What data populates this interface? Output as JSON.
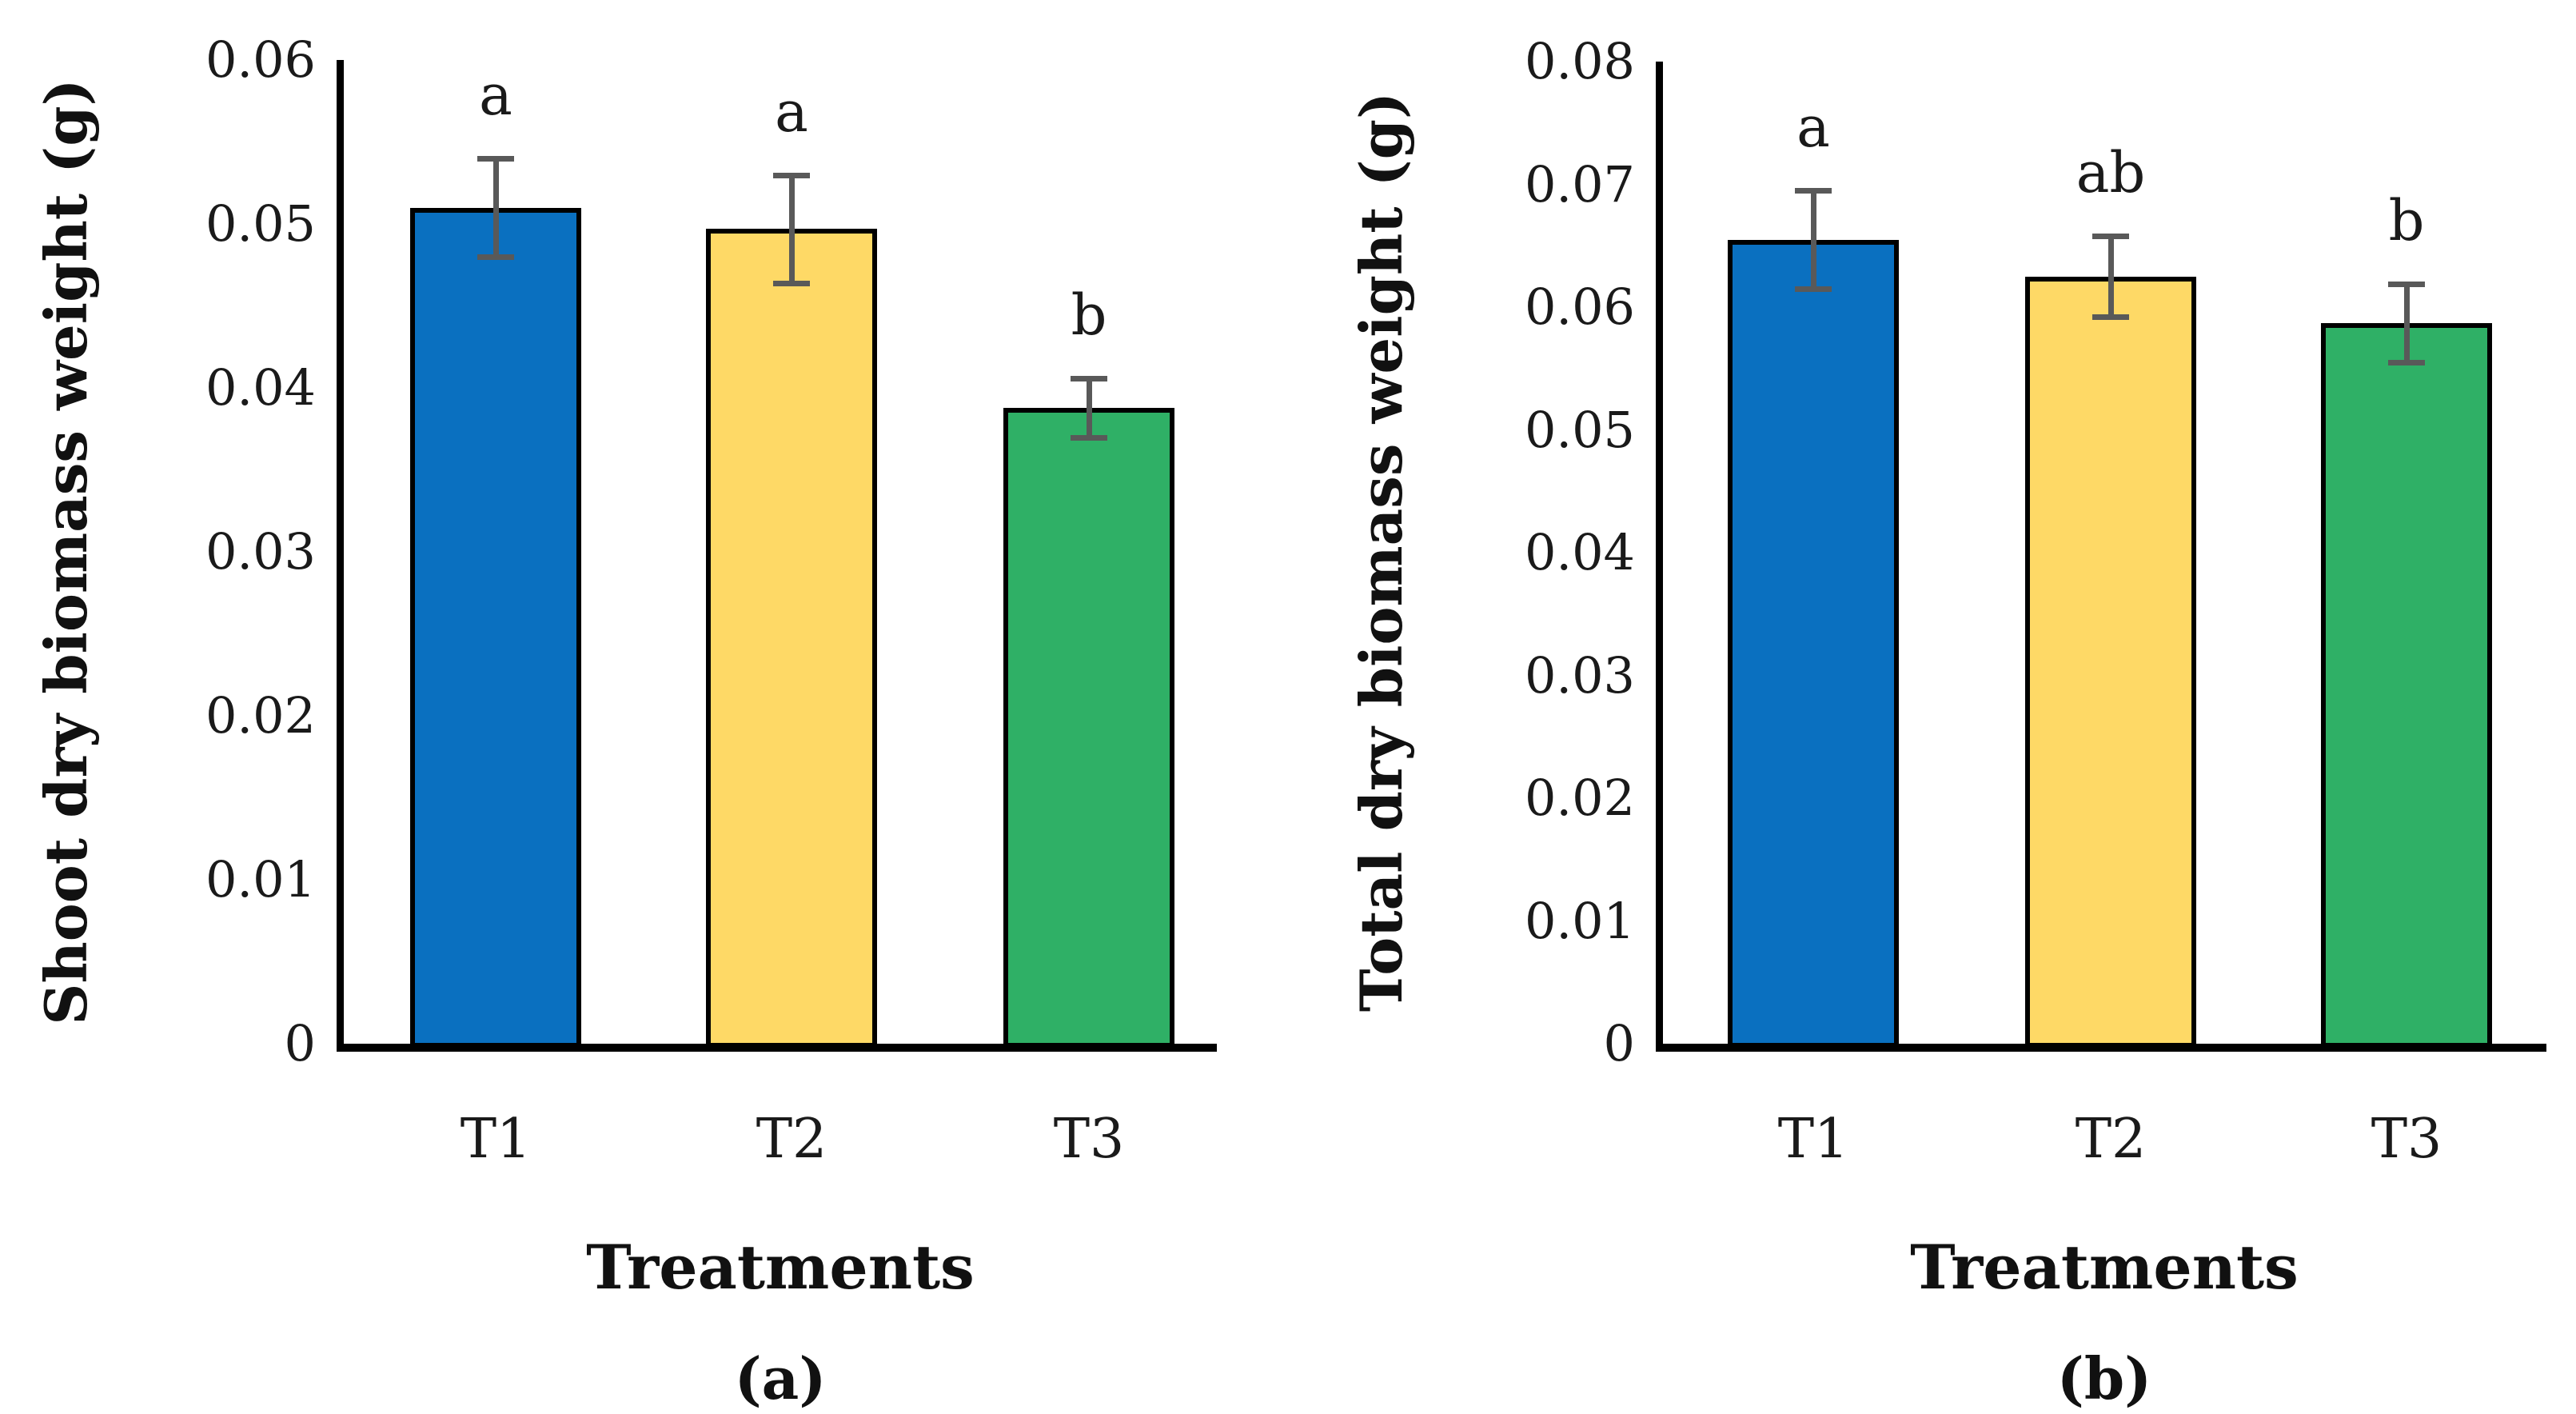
{
  "figure": {
    "background": "#ffffff",
    "axis_color": "#000000",
    "text_color": "#1a1a1a"
  },
  "chart_data": [
    {
      "type": "bar",
      "panel_caption": "(a)",
      "ylabel": "Shoot dry biomass weight (g)",
      "xlabel": "Treatments",
      "categories": [
        "T1",
        "T2",
        "T3"
      ],
      "values": [
        0.051,
        0.0497,
        0.0388
      ],
      "errors": [
        0.003,
        0.0033,
        0.0018
      ],
      "sig_letters": [
        "a",
        "a",
        "b"
      ],
      "ylim": [
        0,
        0.06
      ],
      "ytick_labels": [
        "0",
        "0.01",
        "0.02",
        "0.03",
        "0.04",
        "0.05",
        "0.06"
      ],
      "bar_colors": [
        "#0A70C0",
        "#FED966",
        "#2FB066"
      ],
      "bar_border_color": "#000000",
      "error_color": "#595959",
      "grid": false,
      "legend": "none"
    },
    {
      "type": "bar",
      "panel_caption": "(b)",
      "ylabel": "Total dry biomass weight (g)",
      "xlabel": "Treatments",
      "categories": [
        "T1",
        "T2",
        "T3"
      ],
      "values": [
        0.0655,
        0.0625,
        0.0587
      ],
      "errors": [
        0.004,
        0.0033,
        0.0032
      ],
      "sig_letters": [
        "a",
        "ab",
        "b"
      ],
      "ylim": [
        0,
        0.08
      ],
      "ytick_labels": [
        "0",
        "0.01",
        "0.02",
        "0.03",
        "0.04",
        "0.05",
        "0.06",
        "0.07",
        "0.08"
      ],
      "bar_colors": [
        "#0A70C0",
        "#FED966",
        "#2FB066"
      ],
      "bar_border_color": "#000000",
      "error_color": "#595959",
      "grid": false,
      "legend": "none"
    }
  ]
}
